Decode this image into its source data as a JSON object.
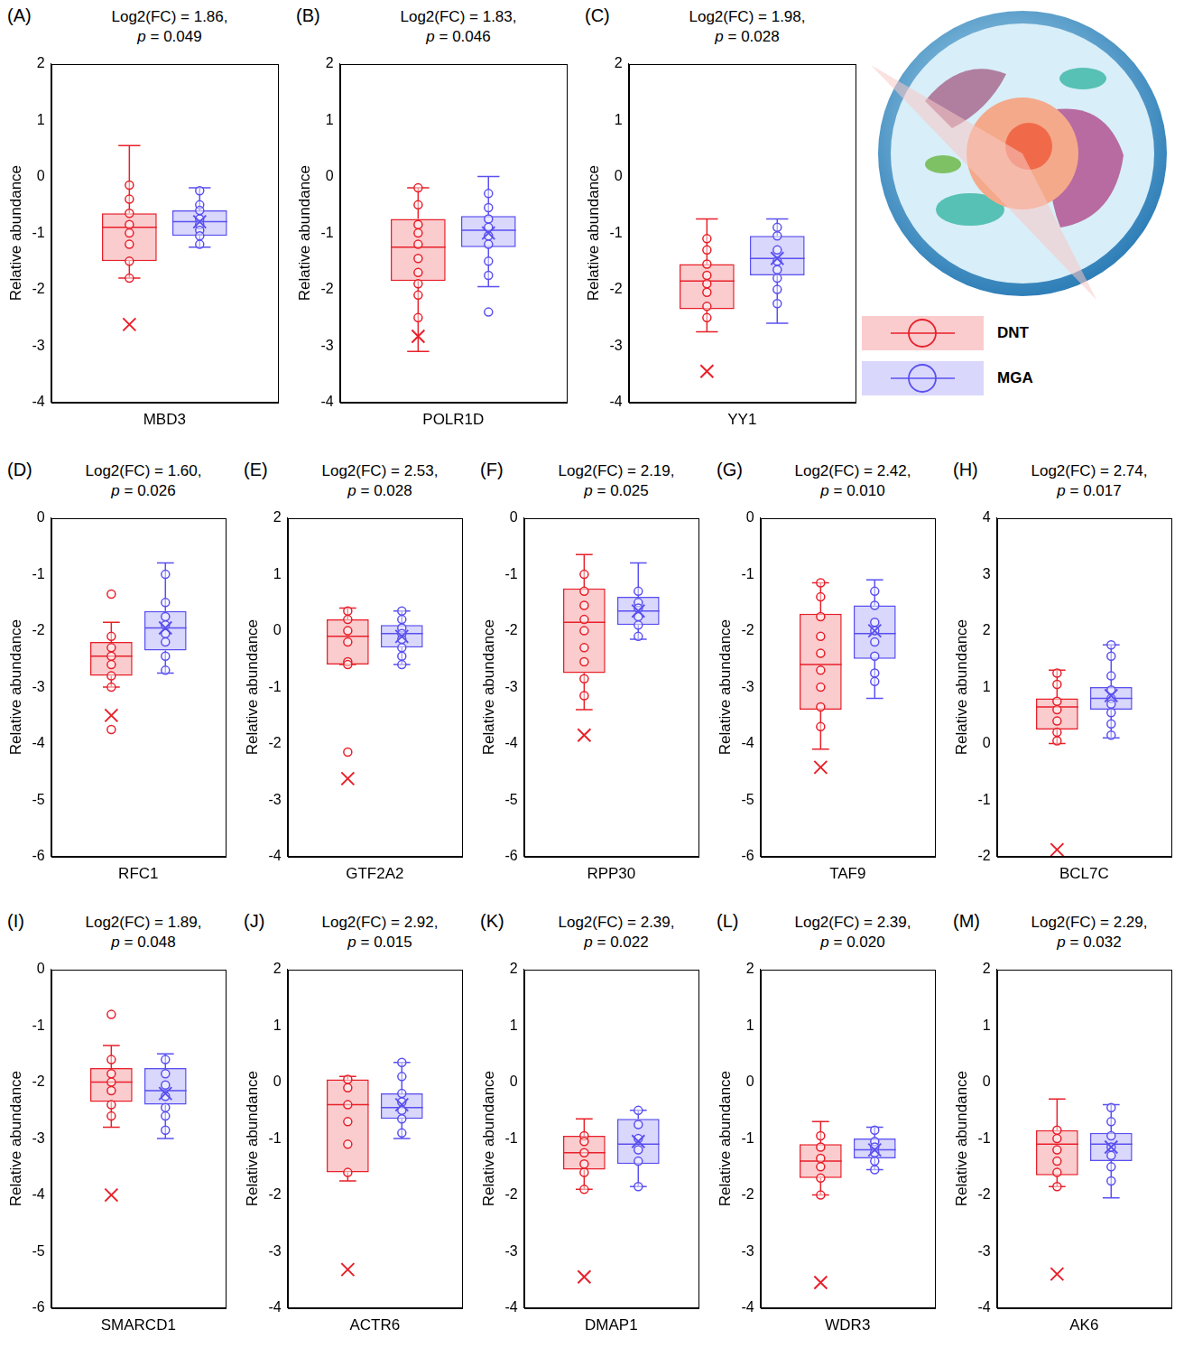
{
  "chart_data": [
    {
      "type": "box",
      "panel": "(A)",
      "title": [
        "Log2(FC) = 1.86,",
        "p = 0.049"
      ],
      "categories": [
        "MBD3"
      ],
      "ylabel": "Relative abundance",
      "ylim": [
        -4,
        2
      ],
      "yticks": [
        -4,
        -3,
        -2,
        -1,
        0,
        1,
        2
      ],
      "series": [
        {
          "name": "DNT",
          "color": "#e8202a",
          "box": {
            "min": -1.8,
            "q1": -1.5,
            "median": -0.9,
            "q3": -0.65,
            "max": 0.55
          },
          "mean": -2.62,
          "points": [
            -0.15,
            -0.4,
            -0.65,
            -0.85,
            -1.0,
            -1.2,
            -1.5,
            -1.8
          ]
        },
        {
          "name": "MGA",
          "color": "#5a50f0",
          "box": {
            "min": -1.25,
            "q1": -1.05,
            "median": -0.8,
            "q3": -0.6,
            "max": -0.2
          },
          "mean": -0.8,
          "points": [
            -0.25,
            -0.5,
            -0.6,
            -0.75,
            -0.85,
            -0.95,
            -1.05,
            -1.2
          ]
        }
      ]
    },
    {
      "type": "box",
      "panel": "(B)",
      "title": [
        "Log2(FC) = 1.83,",
        "p = 0.046"
      ],
      "categories": [
        "POLR1D"
      ],
      "ylabel": "Relative abundance",
      "ylim": [
        -4,
        2
      ],
      "yticks": [
        -4,
        -3,
        -2,
        -1,
        0,
        1,
        2
      ],
      "series": [
        {
          "name": "DNT",
          "color": "#e8202a",
          "box": {
            "min": -3.1,
            "q1": -1.85,
            "median": -1.25,
            "q3": -0.75,
            "max": -0.2
          },
          "mean": -2.83,
          "points": [
            -0.2,
            -0.5,
            -0.85,
            -1.0,
            -1.2,
            -1.45,
            -1.7,
            -1.9,
            -2.1,
            -2.5
          ]
        },
        {
          "name": "MGA",
          "color": "#5a50f0",
          "box": {
            "min": -1.95,
            "q1": -1.25,
            "median": -0.95,
            "q3": -0.7,
            "max": 0.0
          },
          "mean": -1.0,
          "points": [
            -0.3,
            -0.55,
            -0.75,
            -0.9,
            -1.05,
            -1.2,
            -1.5,
            -1.75,
            -2.4
          ]
        }
      ]
    },
    {
      "type": "box",
      "panel": "(C)",
      "title": [
        "Log2(FC) = 1.98,",
        "p = 0.028"
      ],
      "categories": [
        "YY1"
      ],
      "ylabel": "Relative abundance",
      "ylim": [
        -4,
        2
      ],
      "yticks": [
        -4,
        -3,
        -2,
        -1,
        0,
        1,
        2
      ],
      "series": [
        {
          "name": "DNT",
          "color": "#e8202a",
          "box": {
            "min": -2.75,
            "q1": -2.35,
            "median": -1.85,
            "q3": -1.55,
            "max": -0.75
          },
          "mean": -3.45,
          "points": [
            -1.1,
            -1.3,
            -1.55,
            -1.75,
            -1.9,
            -2.05,
            -2.3,
            -2.5
          ]
        },
        {
          "name": "MGA",
          "color": "#5a50f0",
          "box": {
            "min": -2.6,
            "q1": -1.75,
            "median": -1.45,
            "q3": -1.05,
            "max": -0.75
          },
          "mean": -1.45,
          "points": [
            -0.9,
            -1.05,
            -1.3,
            -1.5,
            -1.65,
            -1.8,
            -2.0,
            -2.25
          ]
        }
      ]
    },
    {
      "type": "box",
      "panel": "(D)",
      "title": [
        "Log2(FC) = 1.60,",
        "p = 0.026"
      ],
      "categories": [
        "RFC1"
      ],
      "ylabel": "Relative abundance",
      "ylim": [
        -6,
        0
      ],
      "yticks": [
        -6,
        -5,
        -4,
        -3,
        -2,
        -1,
        0
      ],
      "series": [
        {
          "name": "DNT",
          "color": "#e8202a",
          "box": {
            "min": -3.0,
            "q1": -2.8,
            "median": -2.45,
            "q3": -2.2,
            "max": -1.85
          },
          "mean": -3.5,
          "points": [
            -1.35,
            -2.1,
            -2.3,
            -2.45,
            -2.6,
            -2.8,
            -3.0,
            -3.75
          ]
        },
        {
          "name": "MGA",
          "color": "#5a50f0",
          "box": {
            "min": -2.75,
            "q1": -2.35,
            "median": -1.95,
            "q3": -1.65,
            "max": -0.8
          },
          "mean": -1.95,
          "points": [
            -1.0,
            -1.5,
            -1.75,
            -1.9,
            -2.05,
            -2.2,
            -2.45,
            -2.7
          ]
        }
      ]
    },
    {
      "type": "box",
      "panel": "(E)",
      "title": [
        "Log2(FC) = 2.53,",
        "p = 0.028"
      ],
      "categories": [
        "GTF2A2"
      ],
      "ylabel": "Relative abundance",
      "ylim": [
        -4,
        2
      ],
      "yticks": [
        -4,
        -3,
        -2,
        -1,
        0,
        1,
        2
      ],
      "series": [
        {
          "name": "DNT",
          "color": "#e8202a",
          "box": {
            "min": -0.6,
            "q1": -0.6,
            "median": -0.1,
            "q3": 0.2,
            "max": 0.4
          },
          "mean": -2.62,
          "points": [
            0.35,
            0.2,
            0.0,
            -0.2,
            -0.55,
            -0.6,
            -2.15
          ]
        },
        {
          "name": "MGA",
          "color": "#5a50f0",
          "box": {
            "min": -0.6,
            "q1": -0.3,
            "median": -0.05,
            "q3": 0.1,
            "max": 0.35
          },
          "mean": -0.1,
          "points": [
            0.35,
            0.2,
            0.05,
            -0.05,
            -0.15,
            -0.3,
            -0.45,
            -0.6
          ]
        }
      ]
    },
    {
      "type": "box",
      "panel": "(F)",
      "title": [
        "Log2(FC) = 2.19,",
        "p = 0.025"
      ],
      "categories": [
        "RPP30"
      ],
      "ylabel": "Relative abundance",
      "ylim": [
        -6,
        0
      ],
      "yticks": [
        -6,
        -5,
        -4,
        -3,
        -2,
        -1,
        0
      ],
      "series": [
        {
          "name": "DNT",
          "color": "#e8202a",
          "box": {
            "min": -3.4,
            "q1": -2.75,
            "median": -1.85,
            "q3": -1.25,
            "max": -0.65
          },
          "mean": -3.85,
          "points": [
            -1.0,
            -1.3,
            -1.55,
            -1.8,
            -2.0,
            -2.3,
            -2.55,
            -2.85,
            -3.15
          ]
        },
        {
          "name": "MGA",
          "color": "#5a50f0",
          "box": {
            "min": -2.15,
            "q1": -1.9,
            "median": -1.65,
            "q3": -1.4,
            "max": -0.8
          },
          "mean": -1.65,
          "points": [
            -1.3,
            -1.5,
            -1.6,
            -1.75,
            -1.9,
            -2.1
          ]
        }
      ]
    },
    {
      "type": "box",
      "panel": "(G)",
      "title": [
        "Log2(FC) = 2.42,",
        "p = 0.010"
      ],
      "categories": [
        "TAF9"
      ],
      "ylabel": "Relative abundance",
      "ylim": [
        -6,
        0
      ],
      "yticks": [
        -6,
        -5,
        -4,
        -3,
        -2,
        -1,
        0
      ],
      "series": [
        {
          "name": "DNT",
          "color": "#e8202a",
          "box": {
            "min": -4.1,
            "q1": -3.4,
            "median": -2.6,
            "q3": -1.7,
            "max": -1.15
          },
          "mean": -4.42,
          "points": [
            -1.15,
            -1.4,
            -1.75,
            -2.1,
            -2.4,
            -2.7,
            -3.0,
            -3.35,
            -3.7
          ]
        },
        {
          "name": "MGA",
          "color": "#5a50f0",
          "box": {
            "min": -3.2,
            "q1": -2.5,
            "median": -2.05,
            "q3": -1.55,
            "max": -1.1
          },
          "mean": -2.0,
          "points": [
            -1.3,
            -1.55,
            -1.85,
            -2.0,
            -2.2,
            -2.45,
            -2.75,
            -2.9
          ]
        }
      ]
    },
    {
      "type": "box",
      "panel": "(H)",
      "title": [
        "Log2(FC) = 2.74,",
        "p = 0.017"
      ],
      "categories": [
        "BCL7C"
      ],
      "ylabel": "Relative abundance",
      "ylim": [
        -2,
        4
      ],
      "yticks": [
        -2,
        -1,
        0,
        1,
        2,
        3,
        4
      ],
      "series": [
        {
          "name": "DNT",
          "color": "#e8202a",
          "box": {
            "min": 0.0,
            "q1": 0.25,
            "median": 0.65,
            "q3": 0.8,
            "max": 1.3
          },
          "mean": -1.88,
          "points": [
            1.25,
            1.05,
            0.75,
            0.6,
            0.4,
            0.2,
            0.05
          ]
        },
        {
          "name": "MGA",
          "color": "#5a50f0",
          "box": {
            "min": 0.1,
            "q1": 0.6,
            "median": 0.8,
            "q3": 1.0,
            "max": 1.75
          },
          "mean": 0.85,
          "points": [
            1.75,
            1.55,
            1.2,
            0.95,
            0.8,
            0.7,
            0.55,
            0.35,
            0.15
          ]
        }
      ]
    },
    {
      "type": "box",
      "panel": "(I)",
      "title": [
        "Log2(FC) = 1.89,",
        "p = 0.048"
      ],
      "categories": [
        "SMARCD1"
      ],
      "ylabel": "Relative abundance",
      "ylim": [
        -6,
        0
      ],
      "yticks": [
        -6,
        -5,
        -4,
        -3,
        -2,
        -1,
        0
      ],
      "series": [
        {
          "name": "DNT",
          "color": "#e8202a",
          "box": {
            "min": -2.8,
            "q1": -2.35,
            "median": -2.0,
            "q3": -1.75,
            "max": -1.35
          },
          "mean": -4.0,
          "points": [
            -0.8,
            -1.6,
            -1.85,
            -2.0,
            -2.15,
            -2.4,
            -2.6
          ]
        },
        {
          "name": "MGA",
          "color": "#5a50f0",
          "box": {
            "min": -3.0,
            "q1": -2.4,
            "median": -2.15,
            "q3": -1.75,
            "max": -1.5
          },
          "mean": -2.2,
          "points": [
            -1.6,
            -1.85,
            -2.05,
            -2.25,
            -2.45,
            -2.6,
            -2.85
          ]
        }
      ]
    },
    {
      "type": "box",
      "panel": "(J)",
      "title": [
        "Log2(FC) = 2.92,",
        "p = 0.015"
      ],
      "categories": [
        "ACTR6"
      ],
      "ylabel": "Relative abundance",
      "ylim": [
        -4,
        2
      ],
      "yticks": [
        -4,
        -3,
        -2,
        -1,
        0,
        1,
        2
      ],
      "series": [
        {
          "name": "DNT",
          "color": "#e8202a",
          "box": {
            "min": -1.75,
            "q1": -1.6,
            "median": -0.4,
            "q3": 0.05,
            "max": 0.1
          },
          "mean": -3.32,
          "points": [
            0.05,
            -0.1,
            -0.4,
            -0.7,
            -1.1,
            -1.6
          ]
        },
        {
          "name": "MGA",
          "color": "#5a50f0",
          "box": {
            "min": -1.0,
            "q1": -0.65,
            "median": -0.45,
            "q3": -0.2,
            "max": 0.35
          },
          "mean": -0.4,
          "points": [
            0.35,
            0.1,
            -0.2,
            -0.35,
            -0.5,
            -0.65,
            -0.9
          ]
        }
      ]
    },
    {
      "type": "box",
      "panel": "(K)",
      "title": [
        "Log2(FC) = 2.39,",
        "p = 0.022"
      ],
      "categories": [
        "DMAP1"
      ],
      "ylabel": "Relative abundance",
      "ylim": [
        -4,
        2
      ],
      "yticks": [
        -4,
        -3,
        -2,
        -1,
        0,
        1,
        2
      ],
      "series": [
        {
          "name": "DNT",
          "color": "#e8202a",
          "box": {
            "min": -1.9,
            "q1": -1.55,
            "median": -1.25,
            "q3": -0.95,
            "max": -0.65
          },
          "mean": -3.45,
          "points": [
            -0.95,
            -1.05,
            -1.25,
            -1.45,
            -1.6,
            -1.9
          ]
        },
        {
          "name": "MGA",
          "color": "#5a50f0",
          "box": {
            "min": -1.85,
            "q1": -1.45,
            "median": -1.1,
            "q3": -0.65,
            "max": -0.5
          },
          "mean": -1.05,
          "points": [
            -0.5,
            -0.75,
            -1.0,
            -1.2,
            -1.4,
            -1.85
          ]
        }
      ]
    },
    {
      "type": "box",
      "panel": "(L)",
      "title": [
        "Log2(FC) = 2.39,",
        "p = 0.020"
      ],
      "categories": [
        "WDR3"
      ],
      "ylabel": "Relative abundance",
      "ylim": [
        -4,
        2
      ],
      "yticks": [
        -4,
        -3,
        -2,
        -1,
        0,
        1,
        2
      ],
      "series": [
        {
          "name": "DNT",
          "color": "#e8202a",
          "box": {
            "min": -2.0,
            "q1": -1.7,
            "median": -1.4,
            "q3": -1.1,
            "max": -0.7
          },
          "mean": -3.55,
          "points": [
            -0.95,
            -1.15,
            -1.35,
            -1.5,
            -1.7,
            -2.0
          ]
        },
        {
          "name": "MGA",
          "color": "#5a50f0",
          "box": {
            "min": -1.55,
            "q1": -1.35,
            "median": -1.2,
            "q3": -1.0,
            "max": -0.8
          },
          "mean": -1.2,
          "points": [
            -0.85,
            -1.05,
            -1.15,
            -1.25,
            -1.4,
            -1.55
          ]
        }
      ]
    },
    {
      "type": "box",
      "panel": "(M)",
      "title": [
        "Log2(FC) = 2.29,",
        "p = 0.032"
      ],
      "categories": [
        "AK6"
      ],
      "ylabel": "Relative abundance",
      "ylim": [
        -4,
        2
      ],
      "yticks": [
        -4,
        -3,
        -2,
        -1,
        0,
        1,
        2
      ],
      "series": [
        {
          "name": "DNT",
          "color": "#e8202a",
          "box": {
            "min": -1.85,
            "q1": -1.65,
            "median": -1.1,
            "q3": -0.85,
            "max": -0.3
          },
          "mean": -3.4,
          "points": [
            -0.85,
            -1.0,
            -1.2,
            -1.4,
            -1.6,
            -1.85
          ]
        },
        {
          "name": "MGA",
          "color": "#5a50f0",
          "box": {
            "min": -2.05,
            "q1": -1.4,
            "median": -1.1,
            "q3": -0.9,
            "max": -0.4
          },
          "mean": -1.15,
          "points": [
            -0.45,
            -0.7,
            -0.95,
            -1.15,
            -1.3,
            -1.5,
            -1.75
          ]
        }
      ]
    }
  ]
}
